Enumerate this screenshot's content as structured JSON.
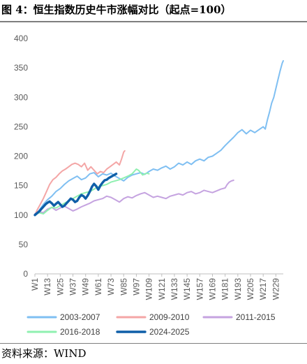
{
  "figure": {
    "title": "图 4：恒生指数历史牛市涨幅对比（起点=100）",
    "source": "资料来源：WIND"
  },
  "chart_data": {
    "type": "line",
    "title": "",
    "xlabel": "",
    "ylabel": "",
    "ylim": [
      0,
      400
    ],
    "yticks": [
      0,
      50,
      100,
      150,
      200,
      250,
      300,
      350,
      400
    ],
    "xticks": [
      "W1",
      "W13",
      "W25",
      "W37",
      "W49",
      "W61",
      "W73",
      "W85",
      "W97",
      "W109",
      "W121",
      "W133",
      "W145",
      "W157",
      "W169",
      "W181",
      "W193",
      "W205",
      "W217",
      "W229"
    ],
    "grid": false,
    "legend_position": "bottom",
    "series": [
      {
        "name": "2003-2007",
        "color": "#7fbff2",
        "stroke_width": 2,
        "points": [
          [
            1,
            100
          ],
          [
            5,
            108
          ],
          [
            9,
            118
          ],
          [
            13,
            126
          ],
          [
            17,
            132
          ],
          [
            21,
            140
          ],
          [
            25,
            145
          ],
          [
            29,
            152
          ],
          [
            33,
            158
          ],
          [
            37,
            162
          ],
          [
            41,
            166
          ],
          [
            45,
            160
          ],
          [
            49,
            163
          ],
          [
            53,
            170
          ],
          [
            57,
            172
          ],
          [
            61,
            165
          ],
          [
            65,
            170
          ],
          [
            69,
            168
          ],
          [
            73,
            171
          ],
          [
            77,
            166
          ],
          [
            81,
            162
          ],
          [
            85,
            158
          ],
          [
            89,
            164
          ],
          [
            93,
            168
          ],
          [
            97,
            170
          ],
          [
            101,
            172
          ],
          [
            105,
            169
          ],
          [
            109,
            174
          ],
          [
            113,
            178
          ],
          [
            117,
            176
          ],
          [
            121,
            180
          ],
          [
            125,
            183
          ],
          [
            129,
            178
          ],
          [
            133,
            182
          ],
          [
            137,
            188
          ],
          [
            141,
            185
          ],
          [
            145,
            190
          ],
          [
            149,
            186
          ],
          [
            153,
            192
          ],
          [
            157,
            195
          ],
          [
            161,
            192
          ],
          [
            165,
            198
          ],
          [
            169,
            200
          ],
          [
            173,
            205
          ],
          [
            177,
            210
          ],
          [
            181,
            218
          ],
          [
            185,
            225
          ],
          [
            189,
            232
          ],
          [
            193,
            240
          ],
          [
            197,
            245
          ],
          [
            201,
            238
          ],
          [
            205,
            244
          ],
          [
            209,
            240
          ],
          [
            213,
            245
          ],
          [
            217,
            250
          ],
          [
            219,
            246
          ],
          [
            221,
            262
          ],
          [
            223,
            275
          ],
          [
            225,
            290
          ],
          [
            227,
            300
          ],
          [
            229,
            315
          ],
          [
            231,
            330
          ],
          [
            233,
            345
          ],
          [
            235,
            358
          ],
          [
            236,
            362
          ]
        ]
      },
      {
        "name": "2009-2010",
        "color": "#f4a6a6",
        "stroke_width": 2,
        "points": [
          [
            1,
            100
          ],
          [
            3,
            108
          ],
          [
            6,
            118
          ],
          [
            9,
            128
          ],
          [
            12,
            140
          ],
          [
            15,
            152
          ],
          [
            18,
            160
          ],
          [
            21,
            164
          ],
          [
            24,
            170
          ],
          [
            27,
            175
          ],
          [
            30,
            178
          ],
          [
            33,
            182
          ],
          [
            36,
            186
          ],
          [
            39,
            188
          ],
          [
            42,
            186
          ],
          [
            45,
            182
          ],
          [
            48,
            188
          ],
          [
            51,
            176
          ],
          [
            54,
            182
          ],
          [
            57,
            176
          ],
          [
            60,
            170
          ],
          [
            63,
            174
          ],
          [
            66,
            172
          ],
          [
            69,
            178
          ],
          [
            72,
            182
          ],
          [
            75,
            186
          ],
          [
            78,
            190
          ],
          [
            81,
            185
          ],
          [
            83,
            195
          ],
          [
            85,
            207
          ],
          [
            86,
            209
          ]
        ]
      },
      {
        "name": "2011-2015",
        "color": "#c5a3e0",
        "stroke_width": 2,
        "points": [
          [
            1,
            102
          ],
          [
            5,
            106
          ],
          [
            9,
            104
          ],
          [
            13,
            110
          ],
          [
            17,
            113
          ],
          [
            21,
            108
          ],
          [
            25,
            112
          ],
          [
            29,
            115
          ],
          [
            33,
            111
          ],
          [
            37,
            107
          ],
          [
            41,
            110
          ],
          [
            45,
            114
          ],
          [
            49,
            117
          ],
          [
            53,
            120
          ],
          [
            57,
            124
          ],
          [
            61,
            126
          ],
          [
            65,
            128
          ],
          [
            69,
            132
          ],
          [
            73,
            130
          ],
          [
            77,
            126
          ],
          [
            81,
            122
          ],
          [
            85,
            128
          ],
          [
            89,
            131
          ],
          [
            93,
            129
          ],
          [
            97,
            133
          ],
          [
            101,
            136
          ],
          [
            105,
            138
          ],
          [
            109,
            134
          ],
          [
            113,
            130
          ],
          [
            117,
            132
          ],
          [
            121,
            130
          ],
          [
            125,
            128
          ],
          [
            129,
            132
          ],
          [
            133,
            134
          ],
          [
            137,
            136
          ],
          [
            141,
            134
          ],
          [
            145,
            138
          ],
          [
            149,
            140
          ],
          [
            153,
            136
          ],
          [
            157,
            138
          ],
          [
            161,
            142
          ],
          [
            165,
            140
          ],
          [
            169,
            138
          ],
          [
            173,
            141
          ],
          [
            177,
            144
          ],
          [
            181,
            146
          ],
          [
            183,
            152
          ],
          [
            185,
            156
          ],
          [
            187,
            158
          ],
          [
            189,
            159
          ]
        ]
      },
      {
        "name": "2016-2018",
        "color": "#8ff0b0",
        "stroke_width": 2,
        "points": [
          [
            1,
            100
          ],
          [
            5,
            104
          ],
          [
            9,
            102
          ],
          [
            13,
            108
          ],
          [
            17,
            113
          ],
          [
            21,
            112
          ],
          [
            25,
            116
          ],
          [
            29,
            120
          ],
          [
            33,
            124
          ],
          [
            37,
            128
          ],
          [
            41,
            132
          ],
          [
            45,
            136
          ],
          [
            49,
            138
          ],
          [
            53,
            140
          ],
          [
            57,
            144
          ],
          [
            61,
            148
          ],
          [
            65,
            150
          ],
          [
            69,
            152
          ],
          [
            73,
            156
          ],
          [
            77,
            158
          ],
          [
            81,
            160
          ],
          [
            85,
            163
          ],
          [
            89,
            166
          ],
          [
            93,
            170
          ],
          [
            95,
            174
          ],
          [
            97,
            178
          ],
          [
            99,
            176
          ],
          [
            101,
            172
          ],
          [
            103,
            168
          ],
          [
            105,
            170
          ],
          [
            107,
            171
          ],
          [
            109,
            170
          ]
        ]
      },
      {
        "name": "2024-2025",
        "color": "#0f5fa8",
        "stroke_width": 3.4,
        "points": [
          [
            1,
            100
          ],
          [
            3,
            103
          ],
          [
            5,
            106
          ],
          [
            7,
            110
          ],
          [
            9,
            114
          ],
          [
            11,
            118
          ],
          [
            13,
            121
          ],
          [
            15,
            123
          ],
          [
            17,
            120
          ],
          [
            19,
            116
          ],
          [
            21,
            119
          ],
          [
            23,
            122
          ],
          [
            25,
            118
          ],
          [
            27,
            114
          ],
          [
            29,
            116
          ],
          [
            31,
            120
          ],
          [
            33,
            124
          ],
          [
            35,
            128
          ],
          [
            37,
            126
          ],
          [
            39,
            122
          ],
          [
            41,
            124
          ],
          [
            43,
            130
          ],
          [
            45,
            134
          ],
          [
            47,
            132
          ],
          [
            49,
            128
          ],
          [
            51,
            133
          ],
          [
            53,
            140
          ],
          [
            55,
            148
          ],
          [
            57,
            153
          ],
          [
            59,
            149
          ],
          [
            61,
            143
          ],
          [
            63,
            150
          ],
          [
            65,
            155
          ],
          [
            67,
            159
          ],
          [
            69,
            160
          ],
          [
            71,
            163
          ],
          [
            73,
            165
          ],
          [
            75,
            167
          ],
          [
            77,
            169
          ],
          [
            78,
            170
          ]
        ]
      }
    ]
  }
}
